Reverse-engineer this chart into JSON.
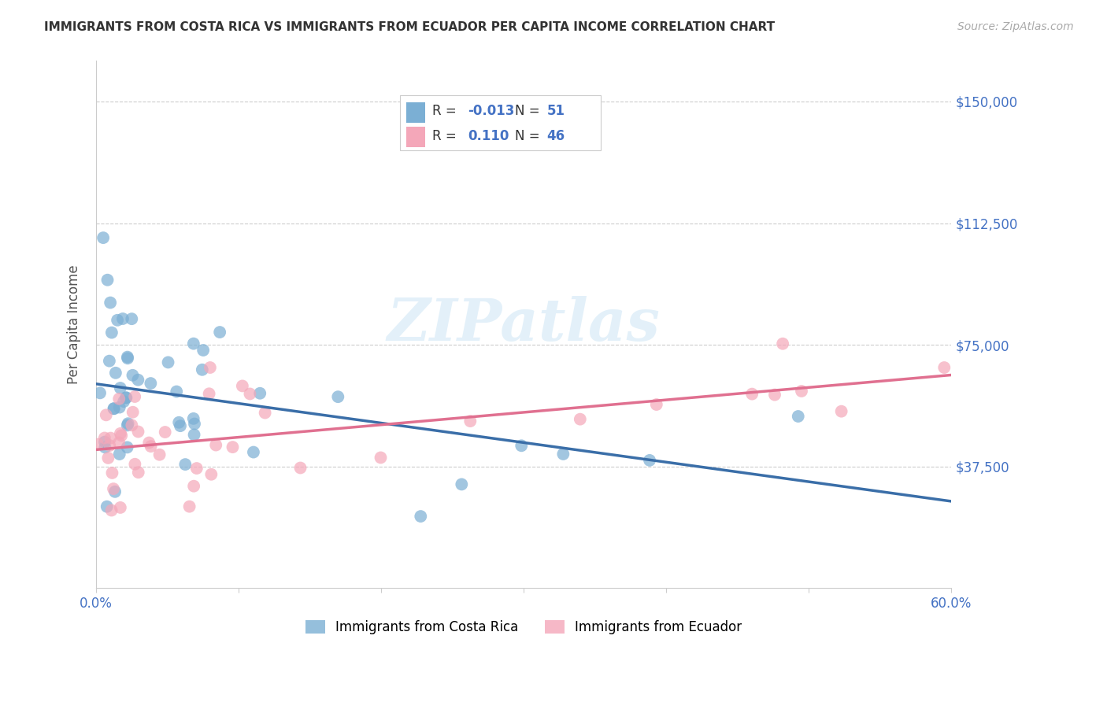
{
  "title": "IMMIGRANTS FROM COSTA RICA VS IMMIGRANTS FROM ECUADOR PER CAPITA INCOME CORRELATION CHART",
  "source": "Source: ZipAtlas.com",
  "ylabel": "Per Capita Income",
  "xlim": [
    0.0,
    0.6
  ],
  "ylim": [
    0,
    162500
  ],
  "yticks": [
    0,
    37500,
    75000,
    112500,
    150000
  ],
  "ytick_labels": [
    "",
    "$37,500",
    "$75,000",
    "$112,500",
    "$150,000"
  ],
  "xticks": [
    0.0,
    0.1,
    0.2,
    0.3,
    0.4,
    0.5,
    0.6
  ],
  "xtick_labels": [
    "0.0%",
    "",
    "",
    "",
    "",
    "",
    "60.0%"
  ],
  "blue_R": "-0.013",
  "blue_N": "51",
  "pink_R": "0.110",
  "pink_N": "46",
  "legend_label1": "Immigrants from Costa Rica",
  "legend_label2": "Immigrants from Ecuador",
  "watermark": "ZIPatlas",
  "background_color": "#ffffff",
  "grid_color": "#cccccc",
  "blue_color": "#7bafd4",
  "pink_color": "#f4a7b9",
  "blue_line_color": "#3a6ea8",
  "pink_line_color": "#e07090",
  "axis_color": "#4472c4"
}
